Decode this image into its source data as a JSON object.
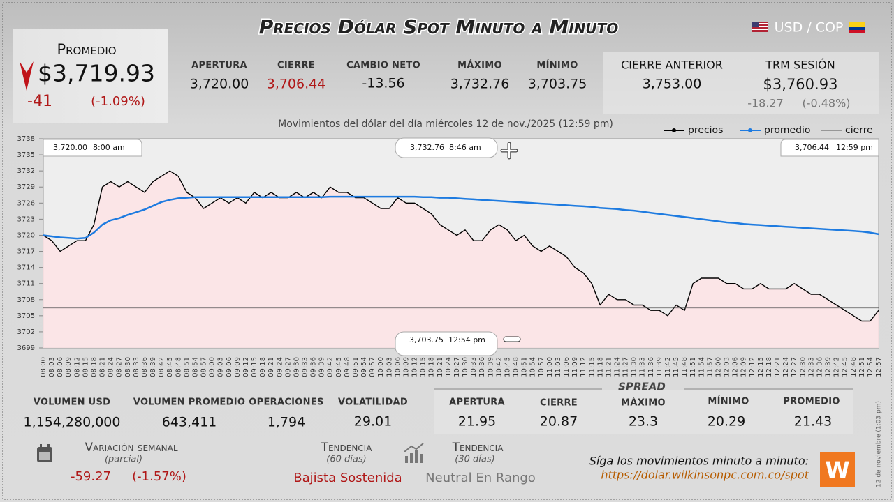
{
  "header": {
    "title": "Precios Dólar Spot Minuto a Minuto",
    "pair": "USD / COP"
  },
  "promedio": {
    "label": "Promedio",
    "value": "$3,719.93",
    "change": "-41",
    "change_pct": "(-1.09%)"
  },
  "session": [
    {
      "label": "APERTURA",
      "value": "3,720.00"
    },
    {
      "label": "CIERRE",
      "value": "3,706.44"
    },
    {
      "label": "CAMBIO NETO",
      "value": "-13.56"
    },
    {
      "label": "MÁXIMO",
      "value": "3,732.76"
    },
    {
      "label": "MÍNIMO",
      "value": "3,703.75"
    }
  ],
  "previous": [
    {
      "label": "CIERRE ANTERIOR",
      "value": "3,753.00"
    },
    {
      "label": "TRM SESIÓN",
      "value": "$3,760.93",
      "change": "-18.27",
      "change_pct": "(-0.48%)"
    }
  ],
  "chart_data": {
    "type": "line",
    "subtitle": "Movimientos del dólar del día miércoles 12 de nov./2025 (12:59 pm)",
    "categories": [
      "08:00",
      "08:03",
      "08:06",
      "08:09",
      "08:12",
      "08:15",
      "08:18",
      "08:21",
      "08:24",
      "08:27",
      "08:30",
      "08:33",
      "08:36",
      "08:39",
      "08:42",
      "08:45",
      "08:48",
      "08:51",
      "08:54",
      "08:57",
      "09:00",
      "09:03",
      "09:06",
      "09:09",
      "09:12",
      "09:15",
      "09:18",
      "09:21",
      "09:24",
      "09:27",
      "09:30",
      "09:33",
      "09:36",
      "09:39",
      "09:42",
      "09:45",
      "09:48",
      "09:51",
      "09:54",
      "09:57",
      "10:00",
      "10:03",
      "10:06",
      "10:09",
      "10:12",
      "10:15",
      "10:18",
      "10:21",
      "10:24",
      "10:27",
      "10:30",
      "10:33",
      "10:36",
      "10:39",
      "10:42",
      "10:45",
      "10:48",
      "10:51",
      "10:54",
      "10:57",
      "11:00",
      "11:03",
      "11:06",
      "11:09",
      "11:12",
      "11:15",
      "11:18",
      "11:21",
      "11:24",
      "11:27",
      "11:30",
      "11:33",
      "11:36",
      "11:39",
      "11:42",
      "11:45",
      "11:48",
      "11:51",
      "11:54",
      "11:57",
      "12:00",
      "12:03",
      "12:06",
      "12:09",
      "12:12",
      "12:15",
      "12:18",
      "12:21",
      "12:24",
      "12:27",
      "12:30",
      "12:33",
      "12:36",
      "12:39",
      "12:42",
      "12:45",
      "12:48",
      "12:51",
      "12:54",
      "12:57"
    ],
    "ylim": [
      3699,
      3738
    ],
    "yticks": [
      3699,
      3702,
      3705,
      3708,
      3711,
      3714,
      3717,
      3720,
      3723,
      3726,
      3729,
      3732,
      3735,
      3738
    ],
    "fill": "#fde3e5",
    "series": [
      {
        "name": "precios",
        "color": "#000000",
        "values": [
          3720,
          3719,
          3717,
          3718,
          3719,
          3719,
          3722,
          3729,
          3730,
          3729,
          3730,
          3729,
          3728,
          3730,
          3731,
          3732,
          3731,
          3728,
          3727,
          3725,
          3726,
          3727,
          3726,
          3727,
          3726,
          3728,
          3727,
          3728,
          3727,
          3727,
          3728,
          3727,
          3728,
          3727,
          3729,
          3728,
          3728,
          3727,
          3727,
          3726,
          3725,
          3725,
          3727,
          3726,
          3726,
          3725,
          3724,
          3722,
          3721,
          3720,
          3721,
          3719,
          3719,
          3721,
          3722,
          3721,
          3719,
          3720,
          3718,
          3717,
          3718,
          3717,
          3716,
          3714,
          3713,
          3711,
          3707,
          3709,
          3708,
          3708,
          3707,
          3707,
          3706,
          3706,
          3705,
          3707,
          3706,
          3711,
          3712,
          3712,
          3712,
          3711,
          3711,
          3710,
          3710,
          3711,
          3710,
          3710,
          3710,
          3711,
          3710,
          3709,
          3709,
          3708,
          3707,
          3706,
          3705,
          3704,
          3704,
          3706
        ]
      },
      {
        "name": "promedio",
        "color": "#1e7be0",
        "values": [
          3720,
          3719.8,
          3719.6,
          3719.5,
          3719.4,
          3719.5,
          3720.5,
          3722,
          3722.8,
          3723.2,
          3723.8,
          3724.3,
          3724.8,
          3725.5,
          3726.2,
          3726.6,
          3726.9,
          3727,
          3727.1,
          3727.1,
          3727.1,
          3727.1,
          3727.1,
          3727.1,
          3727.1,
          3727.1,
          3727.1,
          3727.1,
          3727.1,
          3727.1,
          3727.1,
          3727.1,
          3727.1,
          3727.1,
          3727.2,
          3727.2,
          3727.2,
          3727.2,
          3727.2,
          3727.2,
          3727.2,
          3727.2,
          3727.2,
          3727.2,
          3727.2,
          3727.1,
          3727.1,
          3727,
          3727,
          3726.9,
          3726.8,
          3726.7,
          3726.6,
          3726.5,
          3726.4,
          3726.3,
          3726.2,
          3726.1,
          3726,
          3725.9,
          3725.8,
          3725.7,
          3725.6,
          3725.5,
          3725.4,
          3725.3,
          3725.1,
          3725,
          3724.9,
          3724.7,
          3724.6,
          3724.4,
          3724.2,
          3724,
          3723.8,
          3723.6,
          3723.4,
          3723.2,
          3723,
          3722.8,
          3722.6,
          3722.4,
          3722.3,
          3722.1,
          3722,
          3721.9,
          3721.8,
          3721.7,
          3721.6,
          3721.5,
          3721.4,
          3721.3,
          3721.2,
          3721.1,
          3721,
          3720.9,
          3720.8,
          3720.7,
          3720.5,
          3720.2
        ]
      },
      {
        "name": "cierre",
        "color": "#555555",
        "value": 3706.44
      }
    ],
    "annotations": [
      {
        "price": "3,720.00",
        "time": "8:00 am"
      },
      {
        "price": "3,732.76",
        "time": "8:46 am"
      },
      {
        "price": "3,706.44",
        "time": "12:59 pm"
      },
      {
        "price": "3,703.75",
        "time": "12:54 pm"
      }
    ]
  },
  "stats": [
    {
      "label": "VOLUMEN USD",
      "value": "1,154,280,000"
    },
    {
      "label": "VOLUMEN PROMEDIO",
      "value": "643,411"
    },
    {
      "label": "OPERACIONES",
      "value": "1,794"
    },
    {
      "label": "VOLATILIDAD",
      "value": "29.01"
    }
  ],
  "spread": {
    "title": "SPREAD",
    "items": [
      {
        "label": "APERTURA",
        "value": "21.95"
      },
      {
        "label": "CIERRE",
        "value": "20.87"
      },
      {
        "label": "MÁXIMO",
        "value": "23.3"
      },
      {
        "label": "MÍNIMO",
        "value": "20.29"
      },
      {
        "label": "PROMEDIO",
        "value": "21.43"
      }
    ]
  },
  "weekly": {
    "label": "Variación semanal",
    "note": "(parcial)",
    "change": "-59.27",
    "change_pct": "(-1.57%)"
  },
  "trends": [
    {
      "label": "Tendencia",
      "note": "(60 días)",
      "value": "Bajista Sostenida"
    },
    {
      "label": "Tendencia",
      "note": "(30 días)",
      "value": "Neutral En Rango"
    }
  ],
  "footer": {
    "prompt": "Síga los movimientos minuto a minuto:",
    "url": "https://dolar.wilkinsonpc.com.co/spot",
    "timestamp": "12 de noviembre (1:03 pm)"
  }
}
